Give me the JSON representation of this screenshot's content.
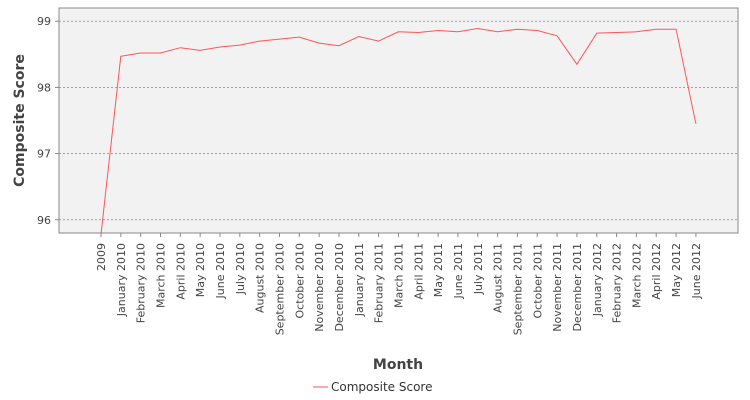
{
  "chart_data": {
    "type": "line",
    "xlabel": "Month",
    "ylabel": "Composite Score",
    "ylim": [
      95.8,
      99.2
    ],
    "yticks": [
      96,
      97,
      98,
      99
    ],
    "grid": true,
    "legend_position": "bottom",
    "categories": [
      "2009",
      "January 2010",
      "February 2010",
      "March 2010",
      "April 2010",
      "May 2010",
      "June 2010",
      "July 2010",
      "August 2010",
      "September 2010",
      "October 2010",
      "November 2010",
      "December 2010",
      "January 2011",
      "February 2011",
      "March 2011",
      "April 2011",
      "May 2011",
      "June 2011",
      "July 2011",
      "August 2011",
      "September 2011",
      "October 2011",
      "November 2011",
      "December 2011",
      "January 2012",
      "February 2012",
      "March 2012",
      "April 2012",
      "May 2012",
      "June 2012"
    ],
    "series": [
      {
        "name": "Composite Score",
        "color": "#ff5555",
        "values": [
          95.78,
          98.47,
          98.52,
          98.52,
          98.6,
          98.56,
          98.61,
          98.64,
          98.7,
          98.73,
          98.76,
          98.67,
          98.63,
          98.77,
          98.7,
          98.84,
          98.83,
          98.86,
          98.84,
          98.89,
          98.84,
          98.88,
          98.86,
          98.78,
          98.35,
          98.82,
          98.83,
          98.84,
          98.88,
          98.88,
          97.45
        ]
      }
    ]
  },
  "style": {
    "plot_background": "#f2f2f2",
    "grid_color": "#888888",
    "frame_color": "#888888"
  }
}
